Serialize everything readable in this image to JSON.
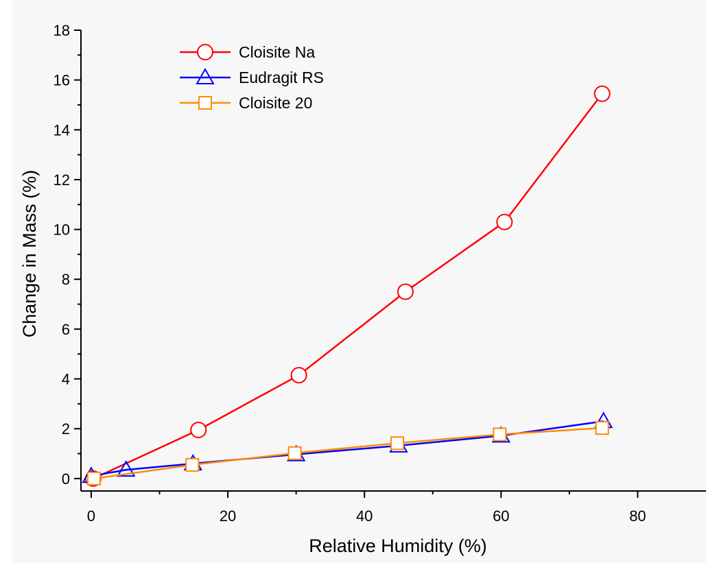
{
  "chart_data": {
    "type": "line",
    "title": "",
    "xlabel": "Relative Humidity (%)",
    "ylabel": "Change in Mass (%)",
    "xlim": [
      -1.5,
      90
    ],
    "ylim": [
      -0.5,
      18
    ],
    "xticks": [
      0,
      20,
      40,
      60,
      80
    ],
    "yticks": [
      0,
      2,
      4,
      6,
      8,
      10,
      12,
      14,
      16,
      18
    ],
    "xtick_labels": [
      "0",
      "20",
      "40",
      "60",
      "80"
    ],
    "ytick_labels": [
      "0",
      "2",
      "4",
      "6",
      "8",
      "10",
      "12",
      "14",
      "16",
      "18"
    ],
    "grid": false,
    "legend_position": "top-left",
    "series": [
      {
        "name": "Cloisite Na",
        "color": "#ff0000",
        "marker": "circle",
        "x": [
          0.3,
          15.7,
          30.4,
          46,
          60.5,
          74.8
        ],
        "y": [
          0.0,
          1.95,
          4.15,
          7.5,
          10.3,
          15.45
        ]
      },
      {
        "name": "Eudragit RS",
        "color": "#0000ff",
        "marker": "triangle",
        "x": [
          0,
          5.1,
          14.9,
          30,
          45,
          60,
          75
        ],
        "y": [
          0.1,
          0.35,
          0.6,
          0.97,
          1.32,
          1.72,
          2.3
        ]
      },
      {
        "name": "Cloisite 20",
        "color": "#ff8c00",
        "marker": "square",
        "x": [
          0.4,
          14.8,
          29.8,
          44.8,
          59.8,
          74.8
        ],
        "y": [
          0.0,
          0.55,
          1.02,
          1.42,
          1.77,
          2.03
        ]
      }
    ]
  }
}
